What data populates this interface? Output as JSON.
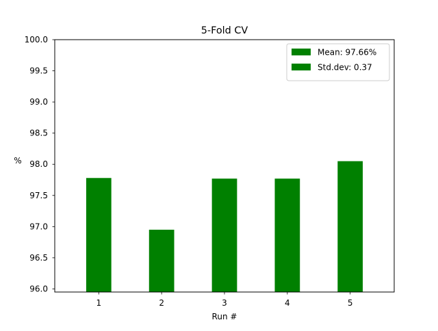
{
  "chart_data": {
    "type": "bar",
    "title": "5-Fold CV",
    "xlabel": "Run #",
    "ylabel": "%",
    "categories": [
      "1",
      "2",
      "3",
      "4",
      "5"
    ],
    "values": [
      97.78,
      96.95,
      97.77,
      97.77,
      98.05
    ],
    "ylim": [
      95.95,
      100.0
    ],
    "yticks": [
      "96.0",
      "96.5",
      "97.0",
      "97.5",
      "98.0",
      "98.5",
      "99.0",
      "99.5",
      "100.0"
    ],
    "bar_color": "#008000",
    "grid": false,
    "legend_position": "top-right",
    "legend": [
      {
        "label": "Mean: 97.66%",
        "color": "#008000"
      },
      {
        "label": "Std.dev: 0.37",
        "color": "#008000"
      }
    ]
  }
}
